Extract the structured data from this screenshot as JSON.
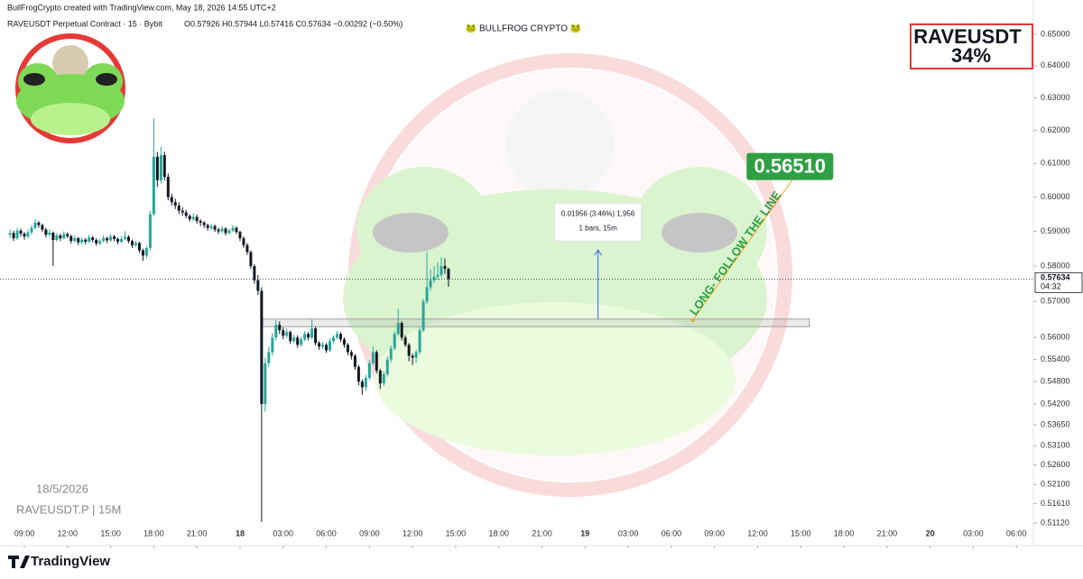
{
  "header": {
    "credit": "BullFrogCrypto created with TradingView.com, May 18, 2026 14:55 UTC+2",
    "symbol": "RAVEUSDT Perpetual Contract · 15 · Bybit",
    "ohlc_text": "O0.57926  H0.57944  L0.57416  C0.57634  −0.00292 (−0.50%)",
    "brand": "🐸 BULLFROG CRYPTO 🐸"
  },
  "badge": {
    "line1": "RAVEUSDT",
    "line2": "34%"
  },
  "watermark": {
    "date": "18/5/2026",
    "symbol": "RAVEUSDT.P | 15M"
  },
  "footer": {
    "logo": "TradingView"
  },
  "chart_data": {
    "type": "candlestick",
    "log_scale": true,
    "up_color": "#26a69a",
    "down_color": "#131722",
    "xlim": [
      7.305,
      79.18
    ],
    "ylim": [
      0.5067,
      0.661
    ],
    "xticks": [
      {
        "value": 9,
        "label": "09:00"
      },
      {
        "value": 12,
        "label": "12:00"
      },
      {
        "value": 15,
        "label": "15:00"
      },
      {
        "value": 18,
        "label": "18:00"
      },
      {
        "value": 21,
        "label": "21:00"
      },
      {
        "value": 24,
        "label": "18"
      },
      {
        "value": 27,
        "label": "03:00"
      },
      {
        "value": 30,
        "label": "06:00"
      },
      {
        "value": 33,
        "label": "09:00"
      },
      {
        "value": 36,
        "label": "12:00"
      },
      {
        "value": 39,
        "label": "15:00"
      },
      {
        "value": 42,
        "label": "18:00"
      },
      {
        "value": 45,
        "label": "21:00"
      },
      {
        "value": 48,
        "label": "19"
      },
      {
        "value": 51,
        "label": "03:00"
      },
      {
        "value": 54,
        "label": "06:00"
      },
      {
        "value": 57,
        "label": "09:00"
      },
      {
        "value": 60,
        "label": "12:00"
      },
      {
        "value": 63,
        "label": "15:00"
      },
      {
        "value": 66,
        "label": "18:00"
      },
      {
        "value": 69,
        "label": "21:00"
      },
      {
        "value": 72,
        "label": "20"
      },
      {
        "value": 75,
        "label": "03:00"
      },
      {
        "value": 78,
        "label": "06:00"
      }
    ],
    "yticks": [
      {
        "value": 0.65,
        "label": "0.65000"
      },
      {
        "value": 0.64,
        "label": "0.64000"
      },
      {
        "value": 0.63,
        "label": "0.63000"
      },
      {
        "value": 0.62,
        "label": "0.62000"
      },
      {
        "value": 0.61,
        "label": "0.61000"
      },
      {
        "value": 0.6,
        "label": "0.60000"
      },
      {
        "value": 0.59,
        "label": "0.59000"
      },
      {
        "value": 0.58,
        "label": "0.58000"
      },
      {
        "value": 0.57,
        "label": "0.57000"
      },
      {
        "value": 0.56,
        "label": "0.56000"
      },
      {
        "value": 0.554,
        "label": "0.55400"
      },
      {
        "value": 0.548,
        "label": "0.54800"
      },
      {
        "value": 0.542,
        "label": "0.54200"
      },
      {
        "value": 0.5365,
        "label": "0.53650"
      },
      {
        "value": 0.531,
        "label": "0.53100"
      },
      {
        "value": 0.526,
        "label": "0.52600"
      },
      {
        "value": 0.521,
        "label": "0.52100"
      },
      {
        "value": 0.5161,
        "label": "0.51610"
      },
      {
        "value": 0.5112,
        "label": "0.51120"
      }
    ],
    "x": [
      8,
      8.25,
      8.5,
      8.75,
      9,
      9.25,
      9.5,
      9.75,
      10,
      10.25,
      10.5,
      10.75,
      11,
      11.25,
      11.5,
      11.75,
      12,
      12.25,
      12.5,
      12.75,
      13,
      13.25,
      13.5,
      13.75,
      14,
      14.25,
      14.5,
      14.75,
      15,
      15.25,
      15.5,
      15.75,
      16,
      16.25,
      16.5,
      16.75,
      17,
      17.25,
      17.5,
      17.75,
      18,
      18.25,
      18.5,
      18.75,
      19,
      19.25,
      19.5,
      19.75,
      20,
      20.25,
      20.5,
      20.75,
      21,
      21.25,
      21.5,
      21.75,
      22,
      22.25,
      22.5,
      22.75,
      23,
      23.25,
      23.5,
      23.75,
      24,
      24.25,
      24.5,
      24.75,
      25,
      25.25,
      25.5,
      25.75,
      26,
      26.25,
      26.5,
      26.75,
      27,
      27.25,
      27.5,
      27.75,
      28,
      28.25,
      28.5,
      28.75,
      29,
      29.25,
      29.5,
      29.75,
      30,
      30.25,
      30.5,
      30.75,
      31,
      31.25,
      31.5,
      31.75,
      32,
      32.25,
      32.5,
      32.75,
      33,
      33.25,
      33.5,
      33.75,
      34,
      34.25,
      34.5,
      34.75,
      35,
      35.25,
      35.5,
      35.75,
      36,
      36.25,
      36.5,
      36.75,
      37,
      37.25,
      37.5,
      37.75,
      38,
      38.25,
      38.5
    ],
    "ohlc": [
      [
        0.589,
        0.5905,
        0.588,
        0.5895
      ],
      [
        0.5895,
        0.5902,
        0.5872,
        0.588
      ],
      [
        0.588,
        0.591,
        0.5875,
        0.5902
      ],
      [
        0.5902,
        0.5908,
        0.5885,
        0.5893
      ],
      [
        0.5893,
        0.5898,
        0.5876,
        0.5885
      ],
      [
        0.5885,
        0.5905,
        0.588,
        0.5897
      ],
      [
        0.5897,
        0.5918,
        0.589,
        0.591
      ],
      [
        0.591,
        0.5935,
        0.5905,
        0.5925
      ],
      [
        0.5925,
        0.593,
        0.591,
        0.5918
      ],
      [
        0.5918,
        0.5922,
        0.5898,
        0.5905
      ],
      [
        0.5905,
        0.591,
        0.5882,
        0.589
      ],
      [
        0.589,
        0.5905,
        0.5885,
        0.5896
      ],
      [
        0.5896,
        0.59,
        0.58,
        0.5875
      ],
      [
        0.5875,
        0.5895,
        0.587,
        0.5888
      ],
      [
        0.5888,
        0.5893,
        0.5872,
        0.588
      ],
      [
        0.588,
        0.59,
        0.5876,
        0.5892
      ],
      [
        0.5892,
        0.5897,
        0.588,
        0.5886
      ],
      [
        0.5886,
        0.589,
        0.5865,
        0.5872
      ],
      [
        0.5872,
        0.5888,
        0.5868,
        0.588
      ],
      [
        0.588,
        0.5884,
        0.586,
        0.5868
      ],
      [
        0.5868,
        0.5882,
        0.5862,
        0.5876
      ],
      [
        0.5876,
        0.588,
        0.5862,
        0.587
      ],
      [
        0.587,
        0.589,
        0.5866,
        0.5882
      ],
      [
        0.5882,
        0.5886,
        0.5868,
        0.5875
      ],
      [
        0.5875,
        0.588,
        0.5858,
        0.5865
      ],
      [
        0.5865,
        0.5878,
        0.586,
        0.5872
      ],
      [
        0.5872,
        0.5888,
        0.5868,
        0.588
      ],
      [
        0.588,
        0.5884,
        0.5866,
        0.5874
      ],
      [
        0.5874,
        0.5892,
        0.587,
        0.5885
      ],
      [
        0.5885,
        0.589,
        0.5872,
        0.5878
      ],
      [
        0.5878,
        0.5882,
        0.5862,
        0.587
      ],
      [
        0.587,
        0.5886,
        0.5866,
        0.5878
      ],
      [
        0.5878,
        0.59,
        0.5874,
        0.5884
      ],
      [
        0.5884,
        0.5888,
        0.5866,
        0.5872
      ],
      [
        0.5872,
        0.5876,
        0.5852,
        0.586
      ],
      [
        0.586,
        0.5872,
        0.5855,
        0.5866
      ],
      [
        0.5866,
        0.587,
        0.5838,
        0.5845
      ],
      [
        0.5845,
        0.585,
        0.5815,
        0.583
      ],
      [
        0.583,
        0.5858,
        0.5822,
        0.5852
      ],
      [
        0.5852,
        0.596,
        0.5845,
        0.595
      ],
      [
        0.595,
        0.6237,
        0.5945,
        0.612
      ],
      [
        0.612,
        0.6135,
        0.603,
        0.605
      ],
      [
        0.605,
        0.615,
        0.604,
        0.6125
      ],
      [
        0.6125,
        0.6135,
        0.605,
        0.606
      ],
      [
        0.606,
        0.607,
        0.599,
        0.6
      ],
      [
        0.6,
        0.601,
        0.5975,
        0.5985
      ],
      [
        0.5985,
        0.5995,
        0.5965,
        0.5975
      ],
      [
        0.5975,
        0.5985,
        0.595,
        0.596
      ],
      [
        0.596,
        0.597,
        0.5945,
        0.5955
      ],
      [
        0.5955,
        0.5962,
        0.5938,
        0.5945
      ],
      [
        0.5945,
        0.595,
        0.5928,
        0.5935
      ],
      [
        0.5935,
        0.5952,
        0.593,
        0.5942
      ],
      [
        0.5942,
        0.5948,
        0.5922,
        0.593
      ],
      [
        0.593,
        0.5936,
        0.5915,
        0.5925
      ],
      [
        0.5925,
        0.593,
        0.591,
        0.5918
      ],
      [
        0.5918,
        0.5922,
        0.5902,
        0.591
      ],
      [
        0.591,
        0.5922,
        0.5904,
        0.5915
      ],
      [
        0.5915,
        0.592,
        0.5898,
        0.5905
      ],
      [
        0.5905,
        0.591,
        0.5892,
        0.59
      ],
      [
        0.59,
        0.5915,
        0.5895,
        0.5908
      ],
      [
        0.5908,
        0.5912,
        0.5888,
        0.5895
      ],
      [
        0.5895,
        0.5908,
        0.589,
        0.5902
      ],
      [
        0.5902,
        0.5918,
        0.5898,
        0.591
      ],
      [
        0.591,
        0.5915,
        0.5892,
        0.5898
      ],
      [
        0.5898,
        0.5902,
        0.5872,
        0.588
      ],
      [
        0.588,
        0.5885,
        0.5852,
        0.586
      ],
      [
        0.586,
        0.5866,
        0.5832,
        0.584
      ],
      [
        0.584,
        0.5845,
        0.5792,
        0.58
      ],
      [
        0.58,
        0.5805,
        0.575,
        0.576
      ],
      [
        0.576,
        0.5775,
        0.5718,
        0.573
      ],
      [
        0.573,
        0.574,
        0.5115,
        0.542
      ],
      [
        0.542,
        0.5545,
        0.54,
        0.553
      ],
      [
        0.553,
        0.5575,
        0.552,
        0.556
      ],
      [
        0.556,
        0.5612,
        0.555,
        0.56
      ],
      [
        0.56,
        0.5648,
        0.5592,
        0.5635
      ],
      [
        0.5635,
        0.5645,
        0.561,
        0.562
      ],
      [
        0.562,
        0.5628,
        0.5595,
        0.5605
      ],
      [
        0.5605,
        0.5625,
        0.5598,
        0.5615
      ],
      [
        0.5615,
        0.562,
        0.5582,
        0.559
      ],
      [
        0.559,
        0.5608,
        0.5584,
        0.56
      ],
      [
        0.56,
        0.5606,
        0.5572,
        0.558
      ],
      [
        0.558,
        0.5602,
        0.5575,
        0.5595
      ],
      [
        0.5595,
        0.5618,
        0.559,
        0.561
      ],
      [
        0.561,
        0.5615,
        0.5592,
        0.56
      ],
      [
        0.56,
        0.565,
        0.5595,
        0.5625
      ],
      [
        0.5625,
        0.563,
        0.5578,
        0.5585
      ],
      [
        0.5585,
        0.559,
        0.5566,
        0.5575
      ],
      [
        0.5575,
        0.5588,
        0.5568,
        0.558
      ],
      [
        0.558,
        0.5585,
        0.5558,
        0.5565
      ],
      [
        0.5565,
        0.5598,
        0.556,
        0.559
      ],
      [
        0.559,
        0.5606,
        0.5584,
        0.56
      ],
      [
        0.56,
        0.5618,
        0.5595,
        0.561
      ],
      [
        0.561,
        0.5615,
        0.5588,
        0.5595
      ],
      [
        0.5595,
        0.56,
        0.5572,
        0.558
      ],
      [
        0.558,
        0.5585,
        0.5552,
        0.556
      ],
      [
        0.556,
        0.5566,
        0.554,
        0.555
      ],
      [
        0.555,
        0.5555,
        0.5512,
        0.552
      ],
      [
        0.552,
        0.5525,
        0.547,
        0.548
      ],
      [
        0.548,
        0.5486,
        0.5445,
        0.5465
      ],
      [
        0.5465,
        0.5498,
        0.5455,
        0.549
      ],
      [
        0.549,
        0.5538,
        0.5484,
        0.553
      ],
      [
        0.553,
        0.5575,
        0.5525,
        0.556
      ],
      [
        0.556,
        0.5565,
        0.5502,
        0.551
      ],
      [
        0.551,
        0.5515,
        0.546,
        0.5475
      ],
      [
        0.5475,
        0.5508,
        0.5468,
        0.55
      ],
      [
        0.55,
        0.5548,
        0.5494,
        0.554
      ],
      [
        0.554,
        0.5578,
        0.5532,
        0.557
      ],
      [
        0.557,
        0.5618,
        0.5565,
        0.561
      ],
      [
        0.561,
        0.568,
        0.5605,
        0.564
      ],
      [
        0.564,
        0.5645,
        0.5592,
        0.56
      ],
      [
        0.56,
        0.5606,
        0.5574,
        0.558
      ],
      [
        0.558,
        0.5585,
        0.5535,
        0.555
      ],
      [
        0.555,
        0.5556,
        0.5525,
        0.5545
      ],
      [
        0.5545,
        0.5566,
        0.553,
        0.556
      ],
      [
        0.556,
        0.5628,
        0.5554,
        0.562
      ],
      [
        0.562,
        0.5708,
        0.5615,
        0.57
      ],
      [
        0.57,
        0.584,
        0.5692,
        0.574
      ],
      [
        0.574,
        0.579,
        0.573,
        0.576
      ],
      [
        0.576,
        0.58,
        0.5752,
        0.577
      ],
      [
        0.577,
        0.581,
        0.5762,
        0.5775
      ],
      [
        0.5775,
        0.5825,
        0.5768,
        0.58
      ],
      [
        0.58,
        0.5822,
        0.5778,
        0.57926
      ],
      [
        0.57926,
        0.57944,
        0.57416,
        0.57634
      ]
    ],
    "last_price": {
      "value": 0.57634,
      "label": "0.57634",
      "countdown": "04:32"
    },
    "zone": {
      "x": [
        25.57,
        63.6
      ],
      "y": [
        0.563,
        0.5651
      ],
      "color": "#9e9e9e"
    },
    "trend_line": {
      "x": [
        55.5,
        62.5
      ],
      "y": [
        0.5648,
        0.6056
      ],
      "color": "#f5a623",
      "text": "LONG- FOLLOW THE LINE",
      "label": "0.56510",
      "label_color": "#2ea043"
    },
    "measure": {
      "x": 48.9,
      "y": [
        0.5651,
        0.5846
      ],
      "color": "#2962ff",
      "lines": [
        "0.01956 (3.46%) 1,956",
        "1 bars, 15m"
      ]
    }
  }
}
